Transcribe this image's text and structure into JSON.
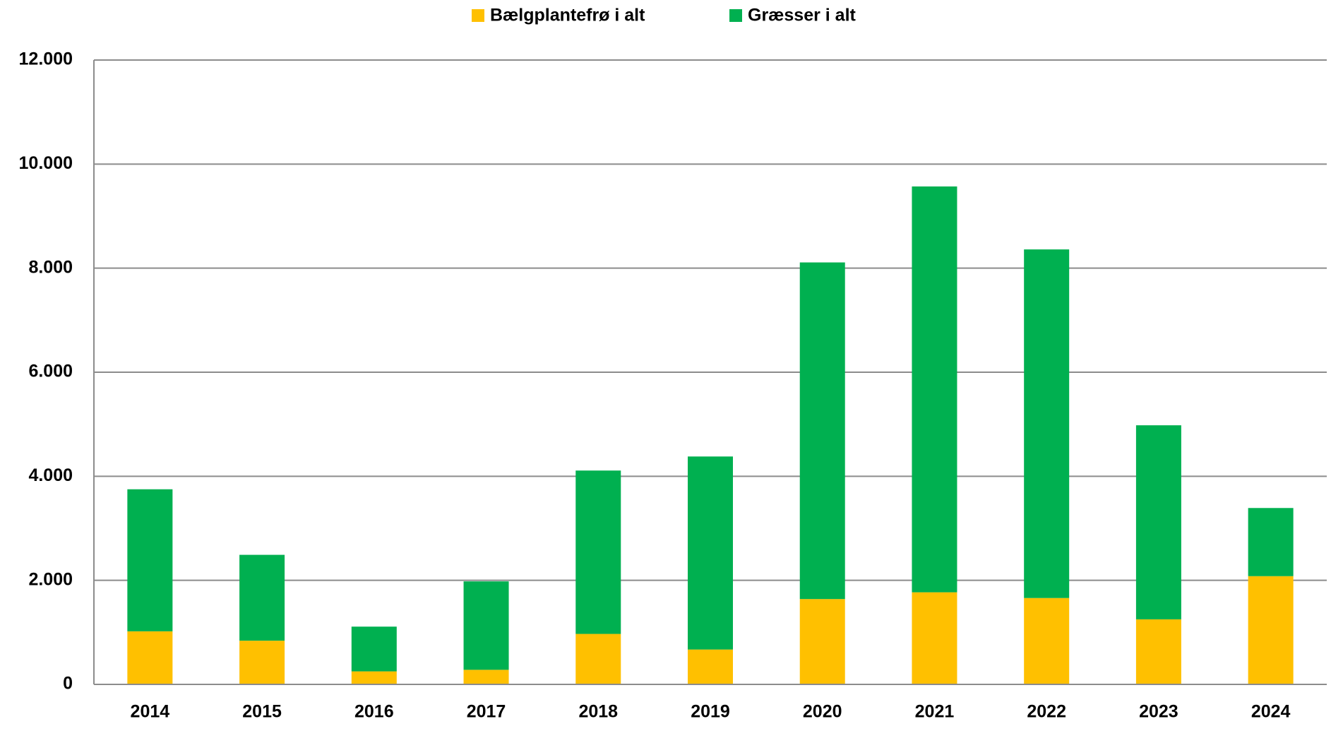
{
  "chart_data": {
    "type": "stacked_bar",
    "categories": [
      "2014",
      "2015",
      "2016",
      "2017",
      "2018",
      "2019",
      "2020",
      "2021",
      "2022",
      "2023",
      "2024"
    ],
    "series": [
      {
        "name": "Bælgplantefrø i alt",
        "color": "#ffc000",
        "values": [
          1020,
          840,
          250,
          280,
          970,
          670,
          1640,
          1770,
          1660,
          1250,
          2080
        ]
      },
      {
        "name": "Græsser i alt",
        "color": "#00b050",
        "values": [
          2730,
          1650,
          860,
          1700,
          3140,
          3710,
          6470,
          7800,
          6700,
          3730,
          1310
        ]
      }
    ],
    "ylim": [
      0,
      12000
    ],
    "yticks": [
      0,
      {
        "value": 2000,
        "label": "2.000"
      },
      {
        "value": 4000,
        "label": "4.000"
      },
      {
        "value": 6000,
        "label": "6.000"
      },
      {
        "value": 8000,
        "label": "8.000"
      },
      {
        "value": 10000,
        "label": "10.000"
      },
      {
        "value": 12000,
        "label": "12.000"
      }
    ],
    "grid": true,
    "legend": "top"
  }
}
